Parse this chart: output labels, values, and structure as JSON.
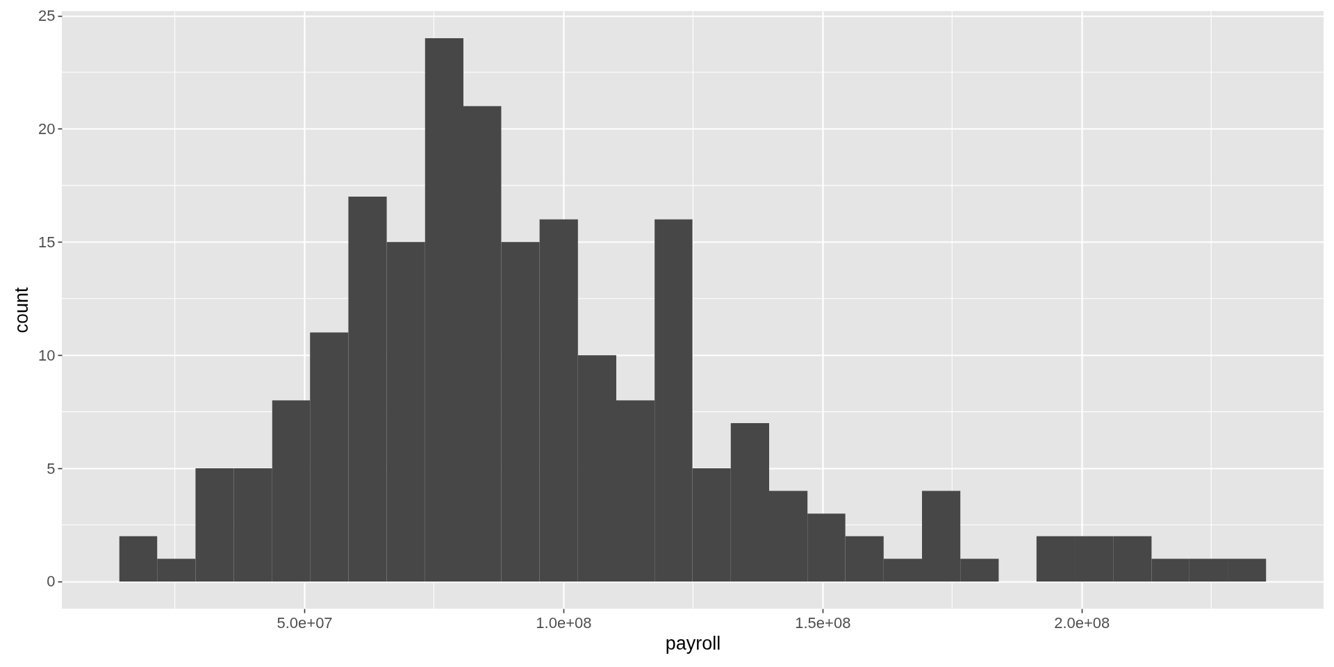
{
  "chart_data": {
    "type": "histogram",
    "xlabel": "payroll",
    "ylabel": "count",
    "bins": [
      14300000,
      21600000,
      29000000,
      36400000,
      43800000,
      51100000,
      58500000,
      65900000,
      73300000,
      80700000,
      88000000,
      95400000,
      102800000,
      110200000,
      117600000,
      124900000,
      132300000,
      139700000,
      147100000,
      154400000,
      161800000,
      169200000,
      176600000,
      184000000,
      191300000,
      198700000,
      206100000,
      213500000,
      220800000,
      228200000,
      235600000
    ],
    "values": [
      2,
      1,
      5,
      5,
      8,
      11,
      17,
      15,
      24,
      21,
      15,
      16,
      10,
      8,
      16,
      5,
      7,
      4,
      3,
      2,
      1,
      4,
      1,
      0,
      2,
      2,
      2,
      1,
      1,
      1
    ],
    "color": "#474747",
    "xlim": [
      3200000,
      246700000
    ],
    "ylim": [
      -1.2,
      25.2
    ],
    "xticks": [
      {
        "value": 50000000,
        "label": "5.0e+07"
      },
      {
        "value": 100000000,
        "label": "1.0e+08"
      },
      {
        "value": 150000000,
        "label": "1.5e+08"
      },
      {
        "value": 200000000,
        "label": "2.0e+08"
      }
    ],
    "yticks": [
      0,
      5,
      10,
      15,
      20,
      25
    ],
    "grid": true
  }
}
